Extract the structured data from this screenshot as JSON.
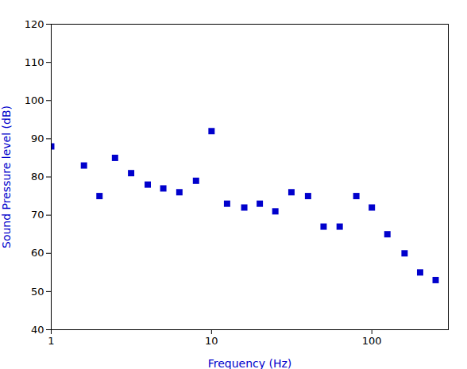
{
  "chart_data": {
    "type": "scatter",
    "x": [
      1,
      1.6,
      2,
      2.5,
      3.15,
      4,
      5,
      6.3,
      8,
      10,
      12.5,
      16,
      20,
      25,
      31.5,
      40,
      50,
      63,
      80,
      100,
      125,
      160,
      200,
      250
    ],
    "values": [
      88,
      83,
      75,
      85,
      81,
      78,
      77,
      76,
      79,
      92,
      73,
      72,
      73,
      71,
      76,
      75,
      67,
      67,
      75,
      72,
      65,
      60,
      55,
      53
    ],
    "color": "#0000CC",
    "marker": "square",
    "xlabel": "Frequency (Hz)",
    "ylabel": "Sound Pressure level (dB)",
    "log": "x",
    "xlim": [
      1,
      300
    ],
    "ylim": [
      40,
      120
    ],
    "xticks": [
      1,
      10,
      100
    ],
    "yticks": [
      40,
      50,
      60,
      70,
      80,
      90,
      100,
      110,
      120
    ],
    "grid": false
  }
}
